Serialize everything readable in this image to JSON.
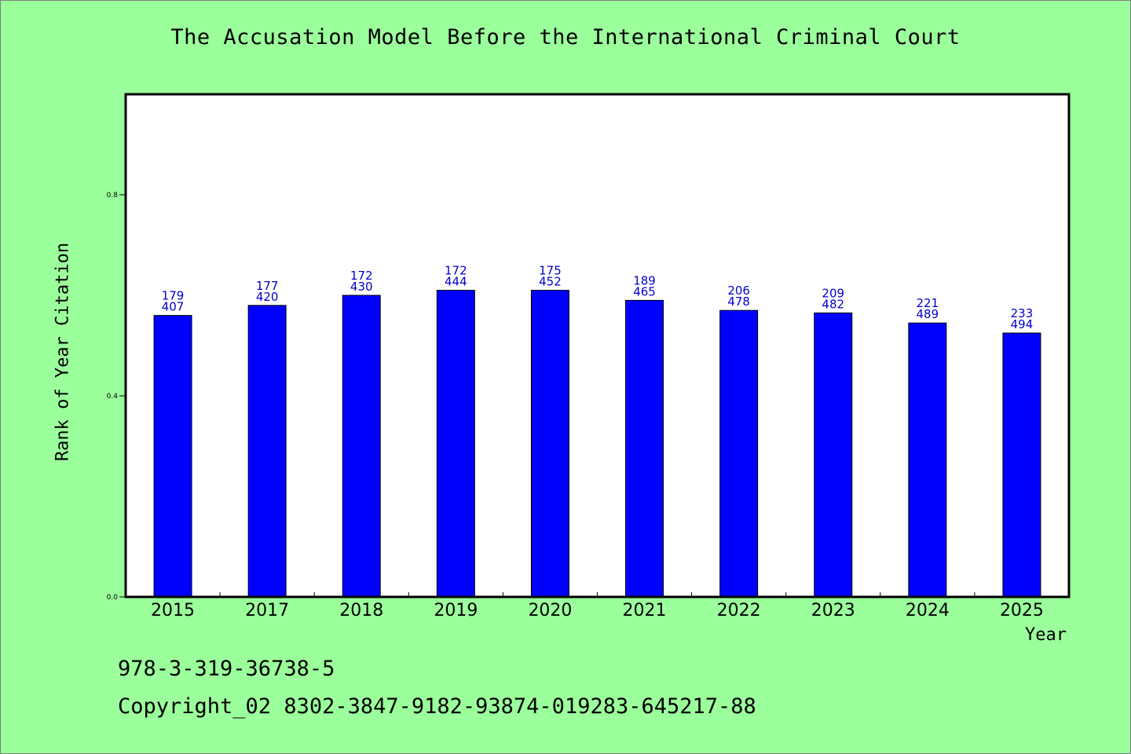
{
  "title": "The Accusation Model Before the International Criminal Court",
  "footer": {
    "isbn": "978-3-319-36738-5",
    "copyright": "Copyright_02 8302-3847-9182-93874-019283-645217-88"
  },
  "colors": {
    "background": "#9bff9b",
    "plot_background": "#ffffff",
    "bar": "#0000ff",
    "data_label": "#0000cc"
  },
  "chart_data": {
    "type": "bar",
    "title": "The Accusation Model Before the International Criminal Court",
    "xlabel": "Year",
    "ylabel": "Rank of Year Citation",
    "ylim": [
      0,
      1.0
    ],
    "yticks": [
      0.0,
      0.4,
      0.8
    ],
    "ytick_labels": [
      "0.0",
      "0.4",
      "0.8"
    ],
    "grid": false,
    "categories": [
      "2015",
      "2017",
      "2018",
      "2019",
      "2020",
      "2021",
      "2022",
      "2023",
      "2024",
      "2025"
    ],
    "values": [
      0.56,
      0.58,
      0.6,
      0.61,
      0.61,
      0.59,
      0.57,
      0.565,
      0.545,
      0.525
    ],
    "labels_top": [
      "179",
      "177",
      "172",
      "172",
      "175",
      "189",
      "206",
      "209",
      "221",
      "233"
    ],
    "labels_bottom": [
      "407",
      "420",
      "430",
      "444",
      "452",
      "465",
      "478",
      "482",
      "489",
      "494"
    ]
  }
}
